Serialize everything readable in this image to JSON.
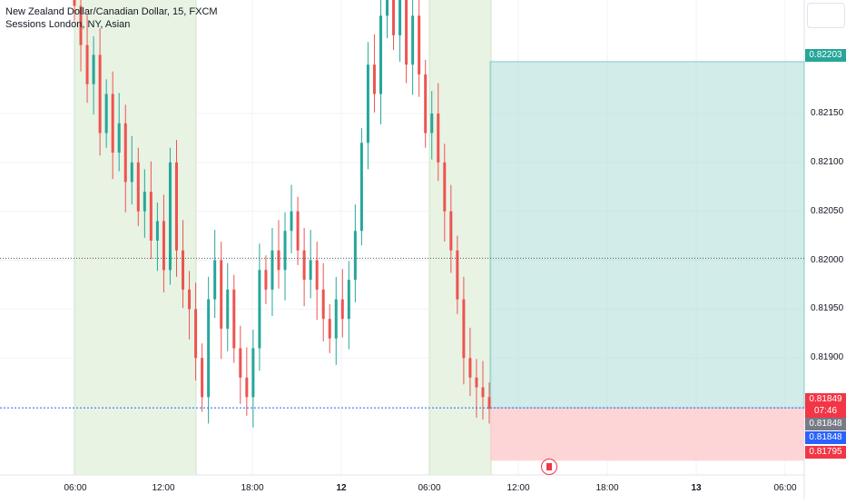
{
  "legend": {
    "title": "New Zealand Dollar/Canadian Dollar, 15, FXCM",
    "sessions": "Sessions London, NY, Asian"
  },
  "price_axis": {
    "labels": [
      "0.82150",
      "0.82100",
      "0.82050",
      "0.82000",
      "0.81950",
      "0.81900"
    ]
  },
  "price_tags": {
    "target": "0.82203",
    "entry": "0.81849",
    "countdown": "07:46",
    "last_gray": "0.81848",
    "last_blue": "0.81848",
    "stop": "0.81795"
  },
  "time_axis": {
    "labels": [
      {
        "text": "06:00",
        "bold": false
      },
      {
        "text": "12:00",
        "bold": false
      },
      {
        "text": "18:00",
        "bold": false
      },
      {
        "text": "12",
        "bold": true
      },
      {
        "text": "06:00",
        "bold": false
      },
      {
        "text": "12:00",
        "bold": false
      },
      {
        "text": "18:00",
        "bold": false
      },
      {
        "text": "13",
        "bold": true
      },
      {
        "text": "06:00",
        "bold": false
      }
    ]
  },
  "colors": {
    "up": "#26a69a",
    "down": "#ef5350",
    "profit_zone": "#b2dfdb",
    "loss_zone": "#fccbcd",
    "session": "#e8f3e4",
    "target_tag": "#26a69a",
    "stop_tag": "#f23645",
    "blue_tag": "#2962ff",
    "gray_tag": "#787b86"
  },
  "chart_data": {
    "type": "candlestick",
    "symbol": "NZDCAD",
    "timeframe": "15",
    "ylim": [
      0.8176,
      0.8228
    ],
    "entry": 0.81849,
    "target": 0.82203,
    "stop": 0.81795,
    "last": 0.81848,
    "closes": [
      0.8226,
      0.8222,
      0.8218,
      0.8221,
      0.8213,
      0.8217,
      0.8211,
      0.8214,
      0.8208,
      0.821,
      0.8205,
      0.8207,
      0.8202,
      0.8204,
      0.8199,
      0.821,
      0.8201,
      0.8197,
      0.8195,
      0.819,
      0.8186,
      0.8196,
      0.82,
      0.8193,
      0.8197,
      0.8191,
      0.8188,
      0.8186,
      0.8191,
      0.8199,
      0.8197,
      0.8201,
      0.8199,
      0.8203,
      0.8205,
      0.8201,
      0.8198,
      0.82,
      0.8197,
      0.8194,
      0.8192,
      0.8196,
      0.8194,
      0.8198,
      0.8203,
      0.8212,
      0.822,
      0.8217,
      0.8225,
      0.8228,
      0.8223,
      0.8227,
      0.822,
      0.8225,
      0.8219,
      0.8213,
      0.8215,
      0.821,
      0.8205,
      0.8201,
      0.8196,
      0.819,
      0.8188,
      0.8187,
      0.8186,
      0.81848
    ]
  }
}
